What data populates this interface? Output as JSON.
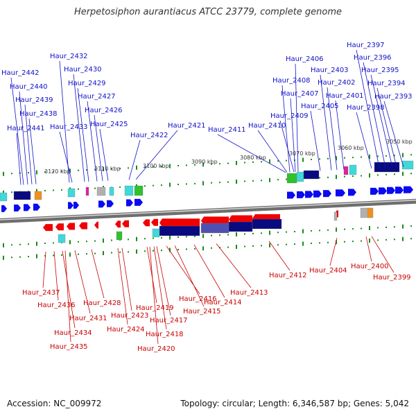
{
  "title": "Herpetosiphon aurantiacus ATCC 23779, complete genome",
  "footer": {
    "accession": "Accession: NC_009972",
    "stats": "Topology: circular; Length: 6,346,587 bp; Genes: 5,042"
  },
  "colors": {
    "forward_label": "#1010c8",
    "reverse_label": "#c80000",
    "forward_gene": "#0a0af0",
    "reverse_gene": "#f00000",
    "backbone": "#6e6e6e",
    "tick": "#1a8a1a",
    "domain_dark": "#0a0a80",
    "domain_cyan": "#40d8d8",
    "domain_green": "#30c030",
    "domain_gray": "#b0b0b0",
    "domain_orange": "#f09020",
    "domain_magenta": "#e020a0"
  },
  "scale_labels": [
    "3120 kbp",
    "3110 kbp",
    "3100 kbp",
    "3090 kbp",
    "3080 kbp",
    "3070 kbp",
    "3060 kbp",
    "3050 kbp"
  ],
  "forward_genes": [
    "Haur_2397",
    "Haur_2396",
    "Haur_2395",
    "Haur_2394",
    "Haur_2393",
    "Haur_2398",
    "Haur_2406",
    "Haur_2403",
    "Haur_2408",
    "Haur_2402",
    "Haur_2407",
    "Haur_2401",
    "Haur_2405",
    "Haur_2409",
    "Haur_2410",
    "Haur_2411",
    "Haur_2421",
    "Haur_2422",
    "Haur_2432",
    "Haur_2430",
    "Haur_2429",
    "Haur_2427",
    "Haur_2426",
    "Haur_2425",
    "Haur_2433",
    "Haur_2442",
    "Haur_2440",
    "Haur_2439",
    "Haur_2438",
    "Haur_2441"
  ],
  "reverse_genes": [
    "Haur_2437",
    "Haur_2436",
    "Haur_2434",
    "Haur_2435",
    "Haur_2431",
    "Haur_2428",
    "Haur_2424",
    "Haur_2423",
    "Haur_2419",
    "Haur_2420",
    "Haur_2418",
    "Haur_2417",
    "Haur_2416",
    "Haur_2415",
    "Haur_2414",
    "Haur_2413",
    "Haur_2412",
    "Haur_2404",
    "Haur_2400",
    "Haur_2399"
  ]
}
